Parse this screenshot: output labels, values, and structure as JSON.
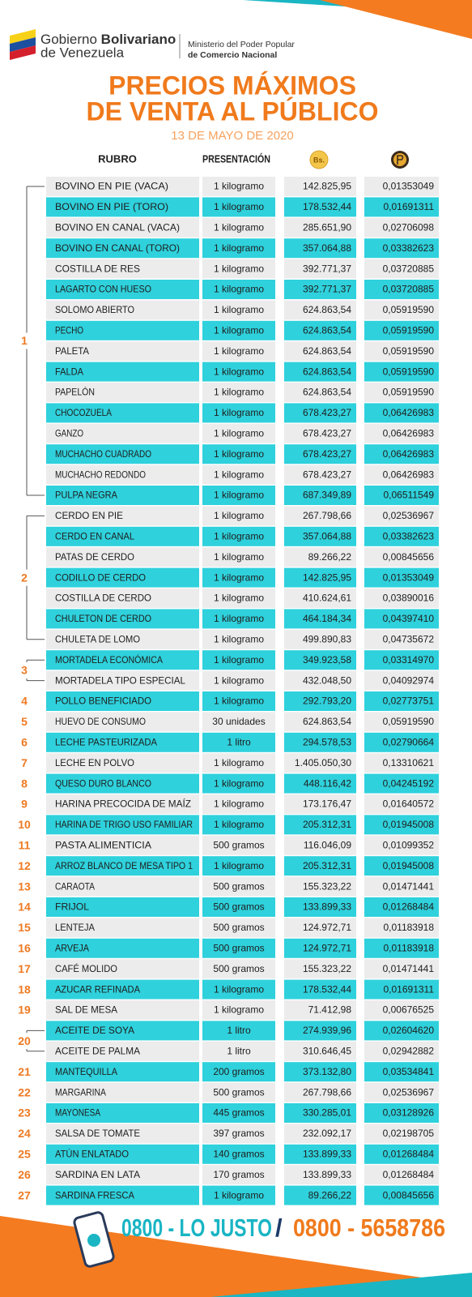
{
  "header": {
    "gov_name_regular": "Gobierno",
    "gov_name_bold": "Bolivariano",
    "gov_country": "de Venezuela",
    "ministry_line1": "Ministerio del Poder Popular",
    "ministry_line2": "de Comercio Nacional"
  },
  "title": {
    "line1": "PRECIOS MÁXIMOS",
    "line2": "DE VENTA AL PÚBLICO",
    "date": "13 DE MAYO DE 2020"
  },
  "table": {
    "columns": [
      "RUBRO",
      "PRESENTACIÓN",
      "Bs."
    ],
    "groups": [
      {
        "number": "1",
        "rows": [
          [
            "BOVINO EN PIE (VACA)",
            "1 kilogramo",
            "142.825,95",
            "0,01353049"
          ],
          [
            "BOVINO EN PIE (TORO)",
            "1 kilogramo",
            "178.532,44",
            "0,01691311"
          ],
          [
            "BOVINO EN CANAL (VACA)",
            "1 kilogramo",
            "285.651,90",
            "0,02706098"
          ],
          [
            "BOVINO EN CANAL (TORO)",
            "1 kilogramo",
            "357.064,88",
            "0,03382623"
          ],
          [
            "COSTILLA DE RES",
            "1 kilogramo",
            "392.771,37",
            "0,03720885"
          ],
          [
            "LAGARTO CON HUESO",
            "1 kilogramo",
            "392.771,37",
            "0,03720885"
          ],
          [
            "SOLOMO ABIERTO",
            "1 kilogramo",
            "624.863,54",
            "0,05919590"
          ],
          [
            "PECHO",
            "1 kilogramo",
            "624.863,54",
            "0,05919590"
          ],
          [
            "PALETA",
            "1 kilogramo",
            "624.863,54",
            "0,05919590"
          ],
          [
            "FALDA",
            "1 kilogramo",
            "624.863,54",
            "0,05919590"
          ],
          [
            "PAPELÓN",
            "1 kilogramo",
            "624.863,54",
            "0,05919590"
          ],
          [
            "CHOCOZUELA",
            "1 kilogramo",
            "678.423,27",
            "0,06426983"
          ],
          [
            "GANZO",
            "1 kilogramo",
            "678.423,27",
            "0,06426983"
          ],
          [
            "MUCHACHO CUADRADO",
            "1 kilogramo",
            "678.423,27",
            "0,06426983"
          ],
          [
            "MUCHACHO REDONDO",
            "1 kilogramo",
            "678.423,27",
            "0,06426983"
          ],
          [
            "PULPA NEGRA",
            "1 kilogramo",
            "687.349,89",
            "0,06511549"
          ]
        ]
      },
      {
        "number": "2",
        "rows": [
          [
            "CERDO EN PIE",
            "1 kilogramo",
            "267.798,66",
            "0,02536967"
          ],
          [
            "CERDO EN CANAL",
            "1 kilogramo",
            "357.064,88",
            "0,03382623"
          ],
          [
            "PATAS DE CERDO",
            "1 kilogramo",
            "89.266,22",
            "0,00845656"
          ],
          [
            "CODILLO DE CERDO",
            "1 kilogramo",
            "142.825,95",
            "0,01353049"
          ],
          [
            "COSTILLA DE CERDO",
            "1 kilogramo",
            "410.624,61",
            "0,03890016"
          ],
          [
            "CHULETON DE CERDO",
            "1 kilogramo",
            "464.184,34",
            "0,04397410"
          ],
          [
            "CHULETA DE LOMO",
            "1 kilogramo",
            "499.890,83",
            "0,04735672"
          ]
        ]
      },
      {
        "number": "3",
        "rows": [
          [
            "MORTADELA ECONÓMICA",
            "1 kilogramo",
            "349.923,58",
            "0,03314970"
          ],
          [
            "MORTADELA TIPO ESPECIAL",
            "1 kilogramo",
            "432.048,50",
            "0,04092974"
          ]
        ]
      },
      {
        "number": "4",
        "rows": [
          [
            "POLLO BENEFICIADO",
            "1 kilogramo",
            "292.793,20",
            "0,02773751"
          ]
        ]
      },
      {
        "number": "5",
        "rows": [
          [
            "HUEVO DE CONSUMO",
            "30 unidades",
            "624.863,54",
            "0,05919590"
          ]
        ]
      },
      {
        "number": "6",
        "rows": [
          [
            "LECHE PASTEURIZADA",
            "1 litro",
            "294.578,53",
            "0,02790664"
          ]
        ]
      },
      {
        "number": "7",
        "rows": [
          [
            "LECHE EN POLVO",
            "1 kilogramo",
            "1.405.050,30",
            "0,13310621"
          ]
        ]
      },
      {
        "number": "8",
        "rows": [
          [
            "QUESO DURO BLANCO",
            "1 kilogramo",
            "448.116,42",
            "0,04245192"
          ]
        ]
      },
      {
        "number": "9",
        "rows": [
          [
            "HARINA PRECOCIDA DE MAÍZ",
            "1 kilogramo",
            "173.176,47",
            "0,01640572"
          ]
        ]
      },
      {
        "number": "10",
        "rows": [
          [
            "HARINA DE TRIGO USO FAMILIAR",
            "1 kilogramo",
            "205.312,31",
            "0,01945008"
          ]
        ]
      },
      {
        "number": "11",
        "rows": [
          [
            "PASTA ALIMENTICIA",
            "500 gramos",
            "116.046,09",
            "0,01099352"
          ]
        ]
      },
      {
        "number": "12",
        "rows": [
          [
            "ARROZ BLANCO DE MESA TIPO 1",
            "1 kilogramo",
            "205.312,31",
            "0,01945008"
          ]
        ]
      },
      {
        "number": "13",
        "rows": [
          [
            "CARAOTA",
            "500 gramos",
            "155.323,22",
            "0,01471441"
          ]
        ]
      },
      {
        "number": "14",
        "rows": [
          [
            "FRIJOL",
            "500 gramos",
            "133.899,33",
            "0,01268484"
          ]
        ]
      },
      {
        "number": "15",
        "rows": [
          [
            "LENTEJA",
            "500 gramos",
            "124.972,71",
            "0,01183918"
          ]
        ]
      },
      {
        "number": "16",
        "rows": [
          [
            "ARVEJA",
            "500 gramos",
            "124.972,71",
            "0,01183918"
          ]
        ]
      },
      {
        "number": "17",
        "rows": [
          [
            "CAFÉ MOLIDO",
            "500 gramos",
            "155.323,22",
            "0,01471441"
          ]
        ]
      },
      {
        "number": "18",
        "rows": [
          [
            "AZUCAR REFINADA",
            "1 kilogramo",
            "178.532,44",
            "0,01691311"
          ]
        ]
      },
      {
        "number": "19",
        "rows": [
          [
            "SAL DE MESA",
            "1 kilogramo",
            "71.412,98",
            "0,00676525"
          ]
        ]
      },
      {
        "number": "20",
        "rows": [
          [
            "ACEITE DE SOYA",
            "1 litro",
            "274.939,96",
            "0,02604620"
          ],
          [
            "ACEITE DE PALMA",
            "1 litro",
            "310.646,45",
            "0,02942882"
          ]
        ]
      },
      {
        "number": "21",
        "rows": [
          [
            "MANTEQUILLA",
            "200 gramos",
            "373.132,80",
            "0,03534841"
          ]
        ]
      },
      {
        "number": "22",
        "rows": [
          [
            "MARGARINA",
            "500 gramos",
            "267.798,66",
            "0,02536967"
          ]
        ]
      },
      {
        "number": "23",
        "rows": [
          [
            "MAYONESA",
            "445 gramos",
            "330.285,01",
            "0,03128926"
          ]
        ]
      },
      {
        "number": "24",
        "rows": [
          [
            "SALSA DE TOMATE",
            "397 gramos",
            "232.092,17",
            "0,02198705"
          ]
        ]
      },
      {
        "number": "25",
        "rows": [
          [
            "ATÚN ENLATADO",
            "140 gramos",
            "133.899,33",
            "0,01268484"
          ]
        ]
      },
      {
        "number": "26",
        "rows": [
          [
            "SARDINA EN LATA",
            "170 gramos",
            "133.899,33",
            "0,01268484"
          ]
        ]
      },
      {
        "number": "27",
        "rows": [
          [
            "SARDINA FRESCA",
            "1 kilogramo",
            "89.266,22",
            "0,00845656"
          ]
        ]
      }
    ]
  },
  "footer": {
    "line_a": "0800 - LO JUSTO",
    "separator": "/",
    "line_b": "0800 - 5658786"
  }
}
